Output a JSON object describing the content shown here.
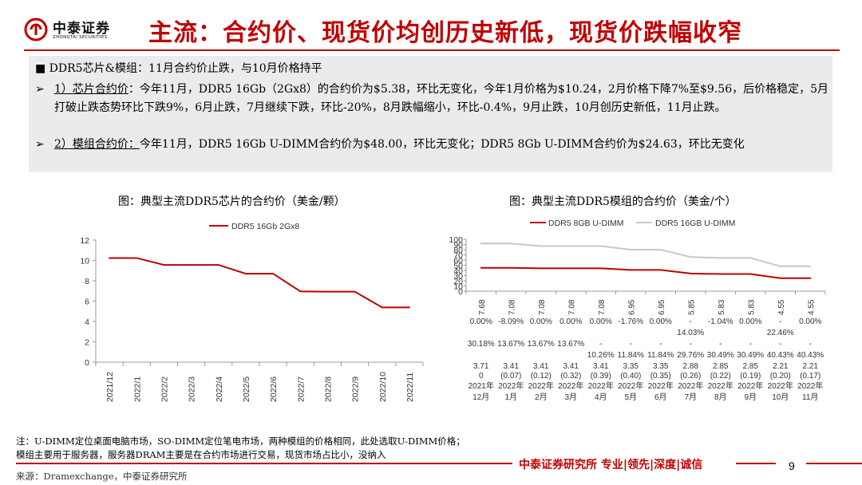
{
  "brand": {
    "name_cn": "中泰证券",
    "name_en": "ZHONGTAI SECURITIES"
  },
  "title": "主流：合约价、现货价均创历史新低，现货价跌幅收窄",
  "summary": {
    "heading": "■  DDR5芯片&模组：11月合约价止跌，与10月价格持平",
    "items": [
      {
        "arrow": "➢",
        "label": "1）芯片合约价",
        "body": "：今年11月，DDR5 16Gb（2Gx8）的合约价为$5.38，环比无变化，今年1月价格为$10.24，2月价格下降7%至$9.56，后价格稳定，5月打破止跌态势环比下跌9%，6月止跌，7月继续下跌，环比-20%，8月跌幅缩小，环比-0.4%，9月止跌，10月创历史新低，11月止跌。"
      },
      {
        "arrow": "➢",
        "label": "2）模组合约价：",
        "body": "今年11月，DDR5 16Gb U-DIMM合约价为$48.00，环比无变化；DDR5 8Gb U-DIMM合约价为$24.63，环比无变化"
      }
    ]
  },
  "chart1_title": "图：典型主流DDR5芯片的合约价（美金/颗）",
  "chart2_title": "图：典型主流DDR5模组的合约价（美金/个）",
  "chart_data": [
    {
      "type": "line",
      "title": "图：典型主流DDR5芯片的合约价（美金/颗）",
      "categories": [
        "2021/12",
        "2022/1",
        "2022/2",
        "2022/3",
        "2022/4",
        "2022/5",
        "2022/6",
        "2022/7",
        "2022/8",
        "2022/9",
        "2022/10",
        "2022/11"
      ],
      "series": [
        {
          "name": "DDR5 16Gb 2Gx8",
          "color": "#c00000",
          "values": [
            10.24,
            10.24,
            9.56,
            9.56,
            9.56,
            8.7,
            8.7,
            6.96,
            6.93,
            6.93,
            5.38,
            5.38
          ]
        }
      ],
      "yticks": [
        "0",
        "2",
        "4",
        "6",
        "8",
        "10",
        "12"
      ],
      "ylim": [
        0,
        12
      ]
    },
    {
      "type": "line",
      "title": "图：典型主流DDR5模组的合约价（美金/个）",
      "categories": [
        "2021年12月",
        "2022年1月",
        "2022年2月",
        "2022年3月",
        "2022年4月",
        "2022年5月",
        "2022年6月",
        "2022年7月",
        "2022年8月",
        "2022年9月",
        "2022年10月",
        "2022年11月"
      ],
      "series": [
        {
          "name": "DDR5 8GB  U-DIMM",
          "color": "#c00000",
          "values": [
            45,
            45,
            44,
            44,
            44,
            41,
            41,
            34,
            33,
            33,
            25,
            25
          ]
        },
        {
          "name": "DDR5 16GB  U-DIMM",
          "color": "#c8c8c8",
          "values": [
            92,
            92,
            87,
            87,
            87,
            80,
            80,
            66,
            64,
            64,
            48,
            48
          ]
        }
      ],
      "yticks": [
        "0",
        "10",
        "20",
        "30",
        "40",
        "50",
        "60",
        "70",
        "80",
        "90",
        "100"
      ],
      "ylim": [
        0,
        100
      ],
      "rotated_row": [
        "7.68",
        "7.08",
        "7.08",
        "7.08",
        "7.08",
        "6.95",
        "6.95",
        "5.85",
        "5.83",
        "5.83",
        "4.55",
        "4.55"
      ],
      "row_a": [
        "0.00%",
        "-8.09%",
        "0.00%",
        "0.00%",
        "0.00%",
        "-1.76%",
        "0.00%",
        "-",
        "-1.04%",
        "0.00%",
        "-",
        "0.00%"
      ],
      "row_a2": [
        "",
        "",
        "",
        "",
        "",
        "",
        "",
        "14.03%",
        "",
        "",
        "22.46%",
        ""
      ],
      "row_b": [
        "30.18%",
        "13.67%",
        "13.67%",
        "13.67%",
        "-",
        "-",
        "-",
        "-",
        "-",
        "-",
        "-",
        "-"
      ],
      "row_b2": [
        "",
        "",
        "",
        "",
        "10.26%",
        "11.84%",
        "11.84%",
        "29.76%",
        "30.49%",
        "30.49%",
        "40.43%",
        "40.43%"
      ],
      "row_c": [
        "3.71",
        "3.41",
        "3.41",
        "3.41",
        "3.41",
        "3.35",
        "3.35",
        "2.88",
        "2.85",
        "2.85",
        "2.21",
        "2.21"
      ],
      "row_d": [
        "0",
        "(0.07)",
        "(0.12)",
        "(0.32)",
        "(0.39)",
        "(0.40)",
        "(0.35)",
        "(0.26)",
        "(0.22)",
        "(0.19)",
        "(0.20)",
        "(0.17)"
      ],
      "row_year": [
        "2021年",
        "2022年",
        "2022年",
        "2022年",
        "2022年",
        "2022年",
        "2022年",
        "2022年",
        "2022年",
        "2022年",
        "2022年",
        "2022年"
      ],
      "row_month": [
        "12月",
        "1月",
        "2月",
        "3月",
        "4月",
        "5月",
        "6月",
        "7月",
        "8月",
        "9月",
        "10月",
        "11月"
      ]
    }
  ],
  "footnotes": {
    "line1": "注：U-DIMM定位桌面电脑市场，SO-DIMM定位笔电市场，两种模组的价格相同，此处选取U-DIMM价格；",
    "line2": "模组主要用于服务器，服务器DRAM主要是在合约市场进行交易，现货市场占比小，没纳入",
    "source": "来源：Dramexchange，中泰证券研究所"
  },
  "footer": {
    "brand": "中泰证券研究所 专业|领先|深度|诚信",
    "page": "9"
  }
}
